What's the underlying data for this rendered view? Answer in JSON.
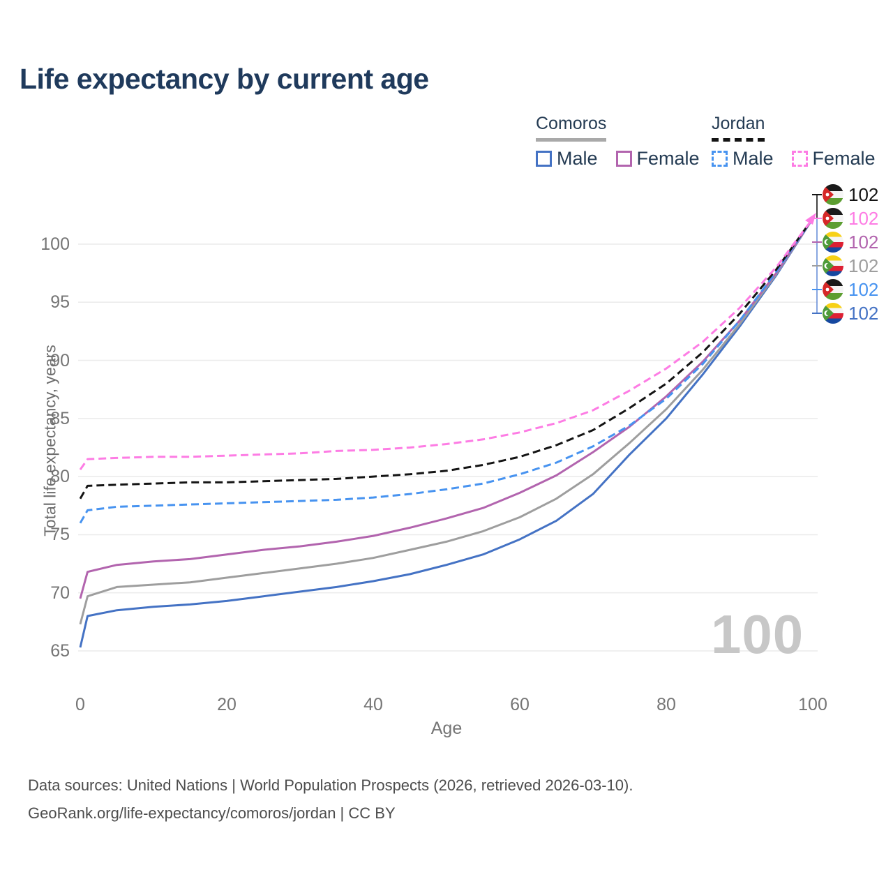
{
  "title": "Life expectancy by current age",
  "legend": {
    "groups": [
      {
        "title": "Comoros",
        "line_style": "solid",
        "line_color": "#a9a9a9",
        "items": [
          {
            "label": "Male",
            "color": "#4472c4",
            "style": "solid"
          },
          {
            "label": "Female",
            "color": "#b264ae",
            "style": "solid"
          }
        ]
      },
      {
        "title": "Jordan",
        "line_style": "dashed",
        "line_color": "#141414",
        "items": [
          {
            "label": "Male",
            "color": "#4793f0",
            "style": "dashed"
          },
          {
            "label": "Female",
            "color": "#fd7ce4",
            "style": "dashed"
          }
        ]
      }
    ]
  },
  "chart_data": {
    "type": "line",
    "title": "Life expectancy by current age",
    "xlabel": "Age",
    "ylabel": "Total life expectancy, years",
    "x_ticks": [
      0,
      20,
      40,
      60,
      80,
      100
    ],
    "y_ticks": [
      65,
      70,
      75,
      80,
      85,
      90,
      95,
      100
    ],
    "xlim": [
      0,
      100
    ],
    "ylim": [
      63.5,
      103.5
    ],
    "grid": "horizontal",
    "legend_position": "top-right",
    "ages": [
      0,
      1,
      5,
      10,
      15,
      20,
      25,
      30,
      35,
      40,
      45,
      50,
      55,
      60,
      65,
      70,
      75,
      80,
      85,
      90,
      95,
      100
    ],
    "series": [
      {
        "name": "Comoros Male",
        "country": "Comoros",
        "sex": "Male",
        "style": "solid",
        "color": "#4472c4",
        "values": [
          65.3,
          68.0,
          68.5,
          68.8,
          69.0,
          69.3,
          69.7,
          70.1,
          70.5,
          71.0,
          71.6,
          72.4,
          73.3,
          74.6,
          76.2,
          78.5,
          81.9,
          85.0,
          88.8,
          92.9,
          97.3,
          102.2
        ]
      },
      {
        "name": "Comoros Both sexes",
        "country": "Comoros",
        "sex": "Both",
        "style": "solid",
        "color": "#9e9e9e",
        "values": [
          67.3,
          69.7,
          70.5,
          70.7,
          70.9,
          71.3,
          71.7,
          72.1,
          72.5,
          73.0,
          73.7,
          74.4,
          75.3,
          76.5,
          78.1,
          80.2,
          82.9,
          85.8,
          89.2,
          93.1,
          97.4,
          102.2
        ]
      },
      {
        "name": "Comoros Female",
        "country": "Comoros",
        "sex": "Female",
        "style": "solid",
        "color": "#b264ae",
        "values": [
          69.5,
          71.8,
          72.4,
          72.7,
          72.9,
          73.3,
          73.7,
          74.0,
          74.4,
          74.9,
          75.6,
          76.4,
          77.3,
          78.6,
          80.1,
          82.1,
          84.3,
          86.9,
          89.9,
          93.4,
          97.5,
          102.2
        ]
      },
      {
        "name": "Jordan Male",
        "country": "Jordan",
        "sex": "Male",
        "style": "dashed",
        "color": "#4793f0",
        "values": [
          76.0,
          77.1,
          77.4,
          77.5,
          77.6,
          77.7,
          77.8,
          77.9,
          78.0,
          78.2,
          78.5,
          78.9,
          79.4,
          80.2,
          81.2,
          82.6,
          84.4,
          86.7,
          89.7,
          93.4,
          97.6,
          102.2
        ]
      },
      {
        "name": "Jordan Both sexes",
        "country": "Jordan",
        "sex": "Both",
        "style": "dashed",
        "color": "#141414",
        "values": [
          78.1,
          79.2,
          79.3,
          79.4,
          79.5,
          79.5,
          79.6,
          79.7,
          79.8,
          80.0,
          80.2,
          80.5,
          81.0,
          81.7,
          82.7,
          84.0,
          85.9,
          88.0,
          90.7,
          94.0,
          97.8,
          102.2
        ]
      },
      {
        "name": "Jordan Female",
        "country": "Jordan",
        "sex": "Female",
        "style": "dashed",
        "color": "#fd7ce4",
        "values": [
          80.6,
          81.5,
          81.6,
          81.7,
          81.7,
          81.8,
          81.9,
          82.0,
          82.2,
          82.3,
          82.5,
          82.8,
          83.2,
          83.8,
          84.6,
          85.7,
          87.4,
          89.3,
          91.6,
          94.5,
          98.0,
          102.2
        ]
      }
    ],
    "end_labels": [
      {
        "flag": "jordan",
        "series": "Jordan Both sexes",
        "color": "#141414",
        "value": "102"
      },
      {
        "flag": "jordan",
        "series": "Jordan Female",
        "color": "#fd7ce4",
        "value": "102"
      },
      {
        "flag": "comoros",
        "series": "Comoros Female",
        "color": "#b264ae",
        "value": "102"
      },
      {
        "flag": "comoros",
        "series": "Comoros Both sexes",
        "color": "#9e9e9e",
        "value": "102"
      },
      {
        "flag": "jordan",
        "series": "Jordan Male",
        "color": "#4793f0",
        "value": "102"
      },
      {
        "flag": "comoros",
        "series": "Comoros Male",
        "color": "#4472c4",
        "value": "102"
      }
    ],
    "watermark": "100"
  },
  "footer": {
    "line1": "Data sources: United Nations | World Population Prospects (2026, retrieved 2026-03-10).",
    "line2": "GeoRank.org/life-expectancy/comoros/jordan | CC BY"
  }
}
